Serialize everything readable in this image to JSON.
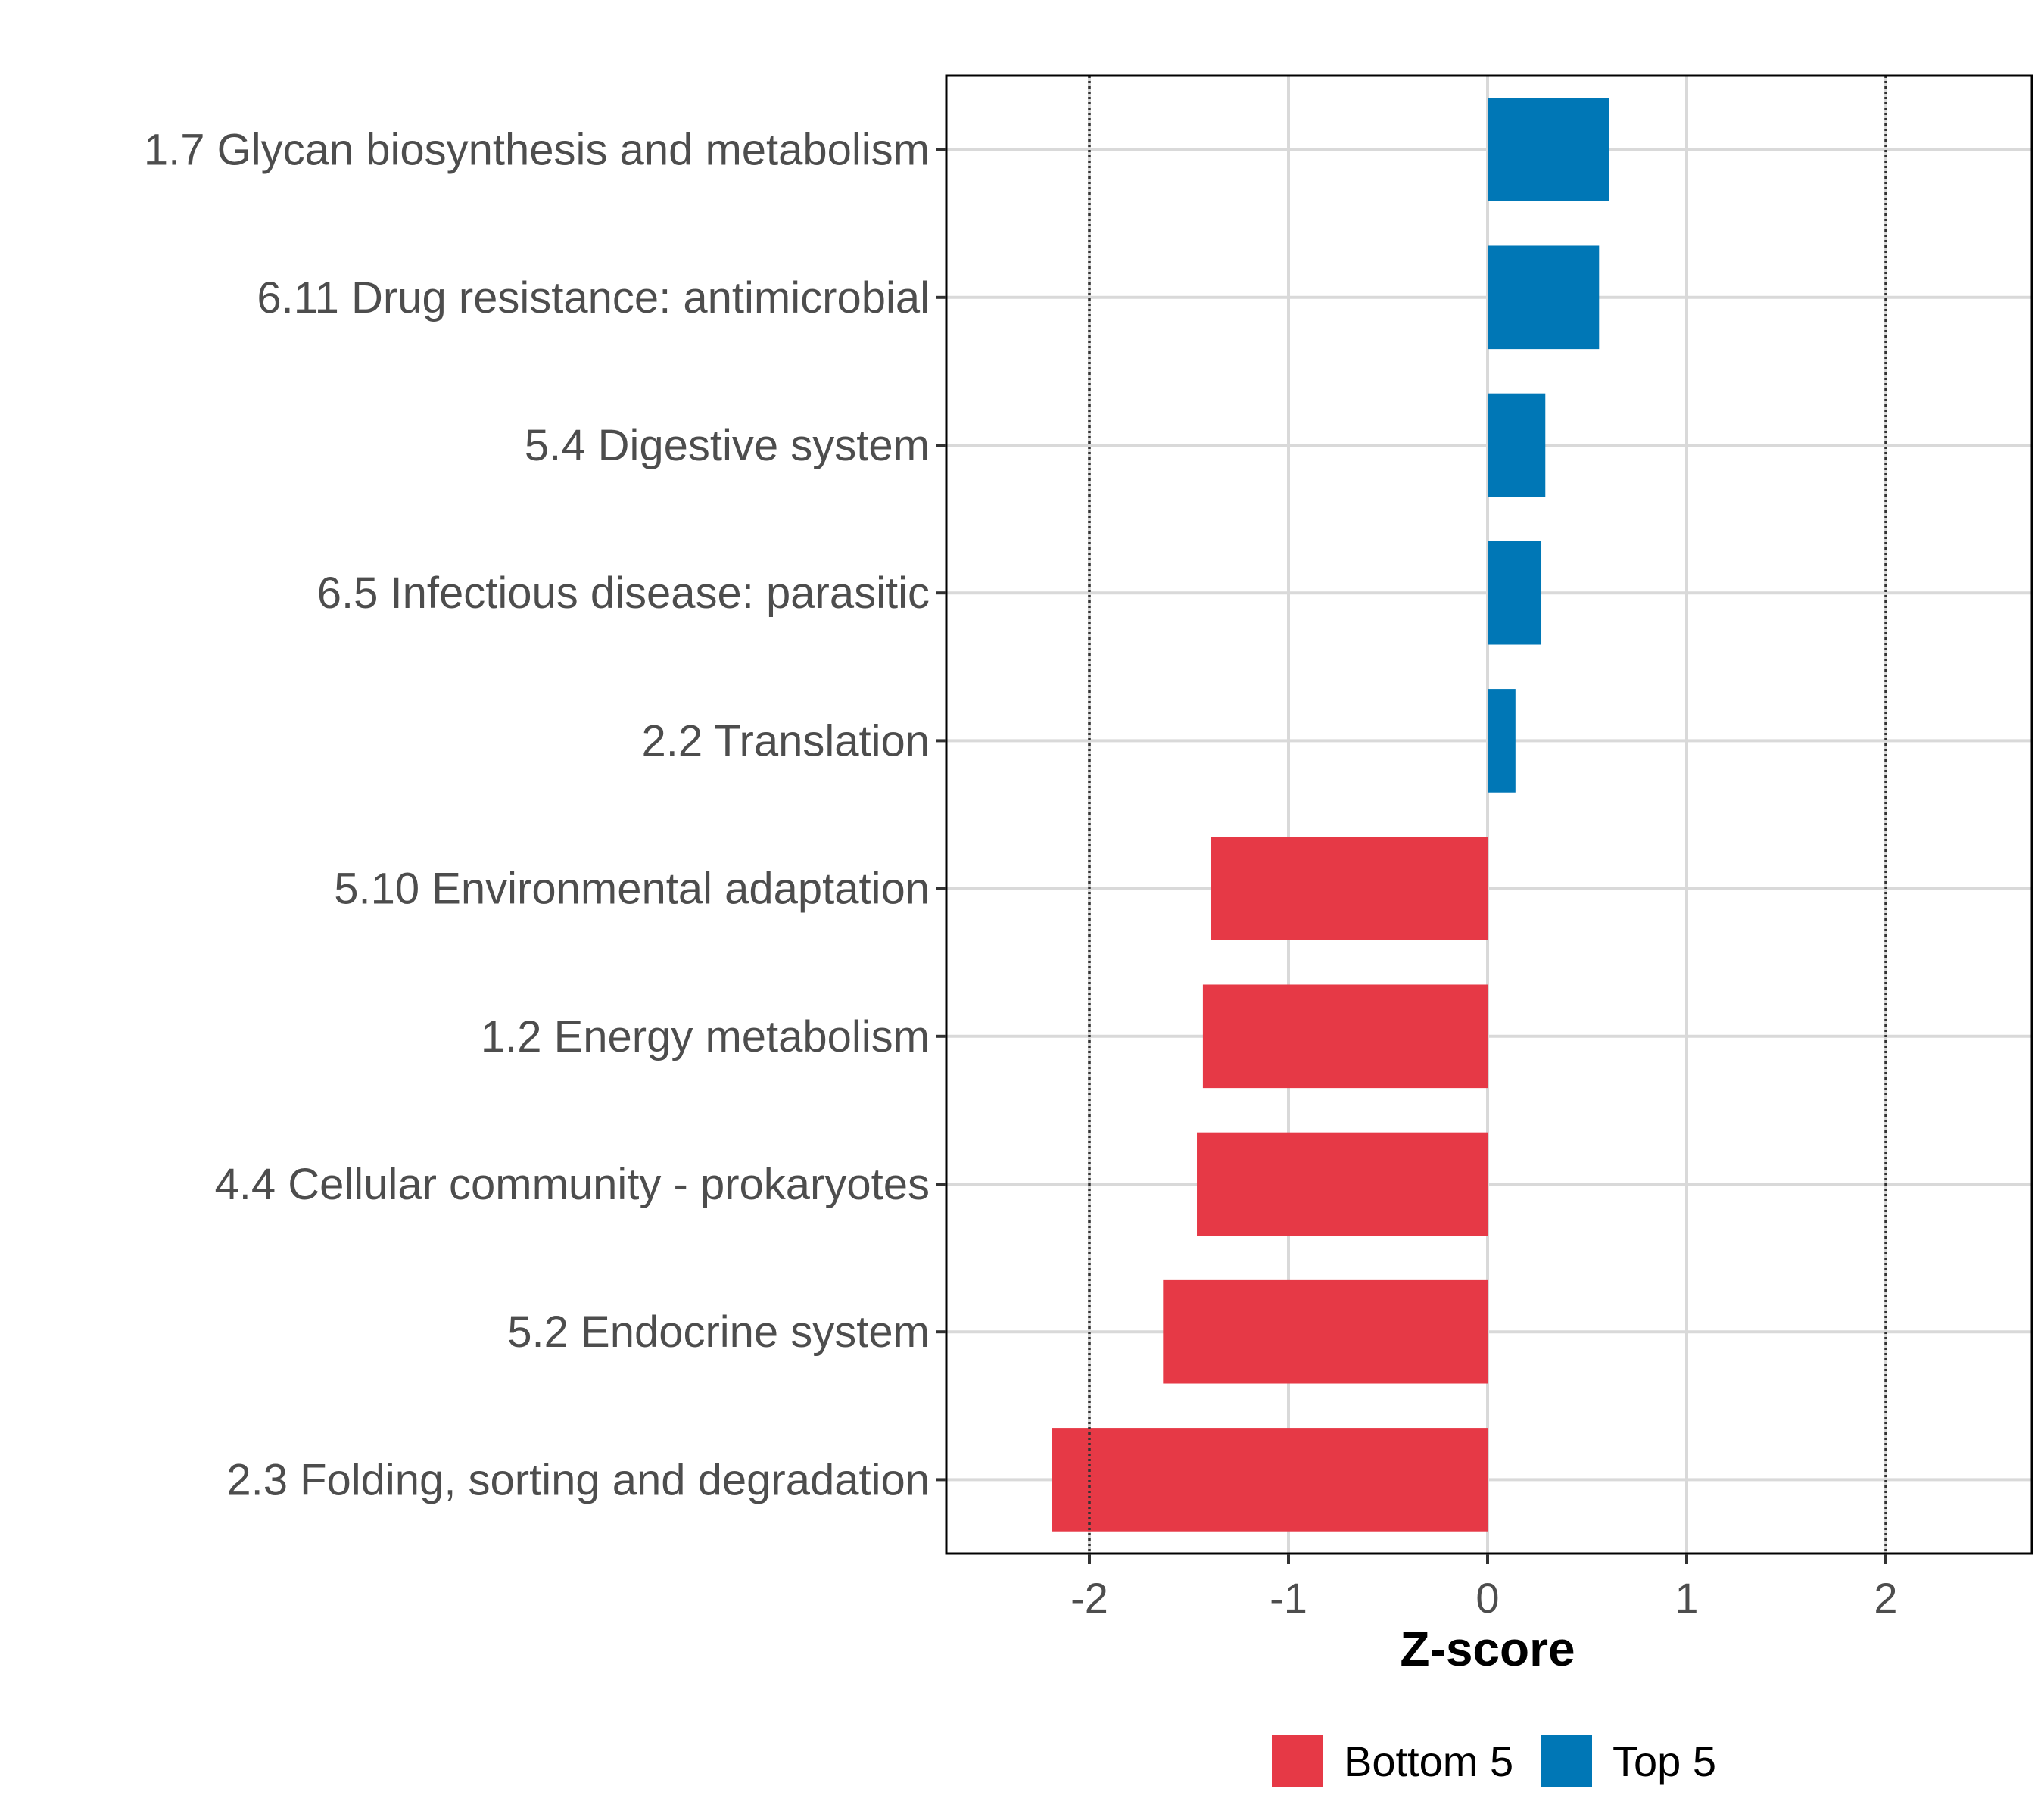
{
  "chart_data": {
    "type": "bar",
    "orientation": "horizontal",
    "title": "",
    "xlabel": "Z-score",
    "ylabel": "",
    "xlim": [
      -2.72,
      2.72
    ],
    "xticks": [
      "-2",
      "-1",
      "0",
      "1",
      "2"
    ],
    "xtick_values": [
      -2,
      -1,
      0,
      1,
      2
    ],
    "reference_lines": [
      -2,
      2
    ],
    "grid": true,
    "legend_position": "bottom",
    "series": [
      {
        "name": "Bottom 5",
        "color": "#E63946"
      },
      {
        "name": "Top 5",
        "color": "#0077B6"
      }
    ],
    "categories": [
      "1.7 Glycan biosynthesis and metabolism",
      "6.11 Drug resistance: antimicrobial",
      "5.4 Digestive system",
      "6.5 Infectious disease: parasitic",
      "2.2 Translation",
      "5.10 Environmental adaptation",
      "1.2 Energy metabolism",
      "4.4 Cellular community - prokaryotes",
      "5.2 Endocrine system",
      "2.3 Folding, sorting and degradation"
    ],
    "values": [
      0.61,
      0.56,
      0.29,
      0.27,
      0.14,
      -1.39,
      -1.43,
      -1.46,
      -1.63,
      -2.19
    ],
    "groups": [
      "Top 5",
      "Top 5",
      "Top 5",
      "Top 5",
      "Top 5",
      "Bottom 5",
      "Bottom 5",
      "Bottom 5",
      "Bottom 5",
      "Bottom 5"
    ]
  }
}
